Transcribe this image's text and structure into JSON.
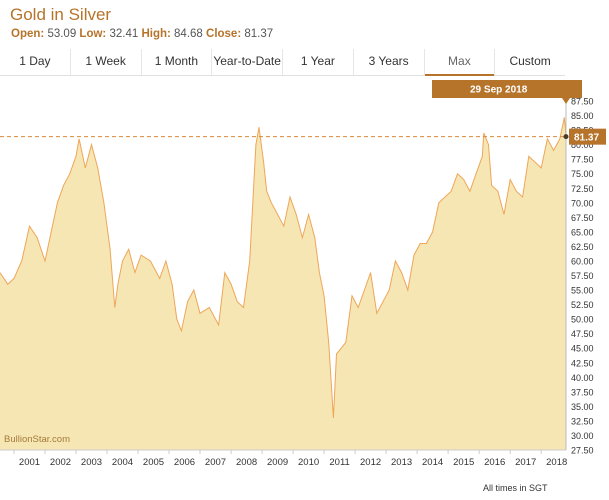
{
  "header": {
    "title": "Gold in Silver",
    "open_label": "Open:",
    "open_value": "53.09",
    "low_label": "Low:",
    "low_value": "32.41",
    "high_label": "High:",
    "high_value": "84.68",
    "close_label": "Close:",
    "close_value": "81.37"
  },
  "tabs": [
    {
      "label": "1 Day"
    },
    {
      "label": "1 Week"
    },
    {
      "label": "1 Month"
    },
    {
      "label": "Year-to-Date"
    },
    {
      "label": "1 Year"
    },
    {
      "label": "3 Years"
    },
    {
      "label": "Max",
      "active": true
    },
    {
      "label": "Custom"
    }
  ],
  "tooltip": {
    "date": "29 Sep 2018"
  },
  "price_marker": {
    "value": "81.37"
  },
  "watermark": "BullionStar.com",
  "footer": "All times in SGT",
  "colors": {
    "accent": "#b5742a",
    "area_fill": "#f5e6b4",
    "line": "#eea658"
  },
  "chart_data": {
    "type": "area",
    "title": "",
    "xlabel": "",
    "ylabel": "",
    "ylim": [
      27.5,
      87.5
    ],
    "xlim": [
      2000.55,
      2018.8
    ],
    "current_value": 81.37,
    "y_ticks": [
      "27.50",
      "30.00",
      "32.50",
      "35.00",
      "37.50",
      "40.00",
      "42.50",
      "45.00",
      "47.50",
      "50.00",
      "52.50",
      "55.00",
      "57.50",
      "60.00",
      "62.50",
      "65.00",
      "67.50",
      "70.00",
      "72.50",
      "75.00",
      "77.50",
      "80.00",
      "82.50",
      "85.00",
      "87.50"
    ],
    "x_ticks": [
      "2001",
      "2002",
      "2003",
      "2004",
      "2005",
      "2006",
      "2007",
      "2008",
      "2009",
      "2010",
      "2011",
      "2012",
      "2013",
      "2014",
      "2015",
      "2016",
      "2017",
      "2018"
    ],
    "series": [
      {
        "x": [
          2000.55,
          2000.8,
          2001.0,
          2001.25,
          2001.5,
          2001.75,
          2002.0,
          2002.2,
          2002.4,
          2002.6,
          2002.8,
          2003.0,
          2003.1,
          2003.3,
          2003.5,
          2003.7,
          2003.9,
          2004.1,
          2004.25,
          2004.35,
          2004.5,
          2004.7,
          2004.9,
          2005.1,
          2005.4,
          2005.7,
          2005.9,
          2006.1,
          2006.25,
          2006.4,
          2006.6,
          2006.8,
          2007.0,
          2007.3,
          2007.6,
          2007.8,
          2008.0,
          2008.2,
          2008.4,
          2008.6,
          2008.7,
          2008.8,
          2008.9,
          2009.05,
          2009.15,
          2009.3,
          2009.5,
          2009.7,
          2009.9,
          2010.1,
          2010.3,
          2010.5,
          2010.7,
          2010.85,
          2011.0,
          2011.15,
          2011.3,
          2011.4,
          2011.55,
          2011.7,
          2011.9,
          2012.1,
          2012.3,
          2012.5,
          2012.7,
          2012.9,
          2013.1,
          2013.3,
          2013.5,
          2013.7,
          2013.9,
          2014.1,
          2014.3,
          2014.5,
          2014.7,
          2014.9,
          2015.1,
          2015.3,
          2015.5,
          2015.7,
          2015.9,
          2016.1,
          2016.15,
          2016.3,
          2016.4,
          2016.6,
          2016.8,
          2017.0,
          2017.2,
          2017.4,
          2017.6,
          2017.8,
          2018.0,
          2018.2,
          2018.4,
          2018.6,
          2018.75,
          2018.8
        ],
        "values": [
          58,
          56,
          57,
          60,
          66,
          64,
          60,
          65,
          70,
          73,
          75,
          78,
          81,
          76,
          80,
          76,
          70,
          62,
          52,
          56,
          60,
          62,
          58,
          61,
          60,
          57,
          60,
          56,
          50,
          48,
          53,
          55,
          51,
          52,
          49,
          58,
          56,
          53,
          52,
          60,
          70,
          80,
          83,
          77,
          72,
          70,
          68,
          66,
          71,
          68,
          64,
          68,
          64,
          58,
          54,
          46,
          33,
          44,
          45,
          46,
          54,
          52,
          55,
          58,
          51,
          53,
          55,
          60,
          58,
          55,
          61,
          63,
          63,
          65,
          70,
          71,
          72,
          75,
          74,
          72,
          75,
          78,
          82,
          80,
          73,
          72,
          68,
          74,
          72,
          71,
          78,
          77,
          76,
          81,
          79,
          81,
          84.68,
          81.37
        ]
      }
    ]
  }
}
